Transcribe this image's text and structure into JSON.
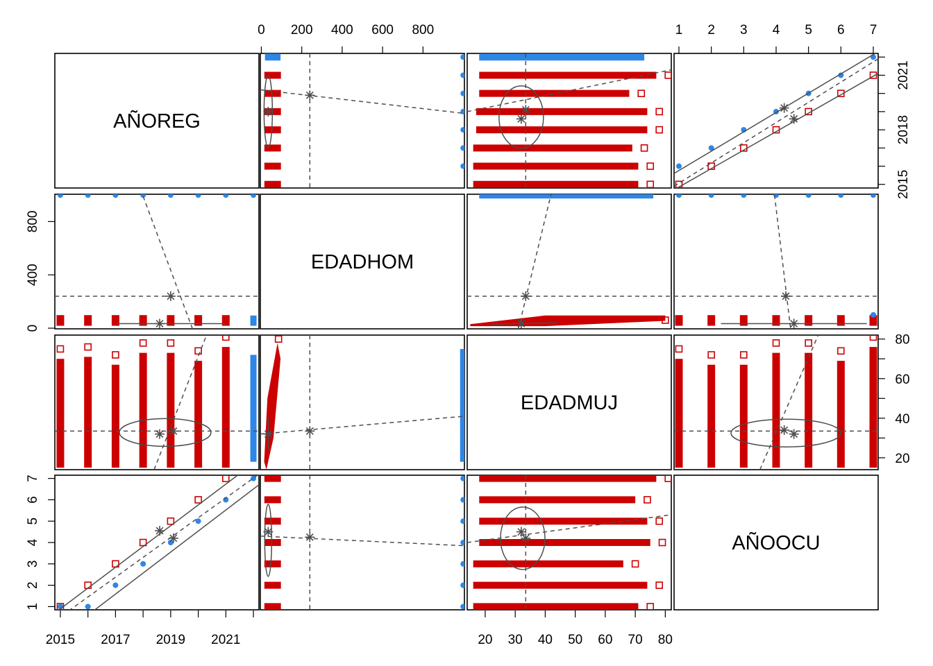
{
  "chart_data": {
    "type": "scatter",
    "kind": "scatterplot-matrix",
    "grid": false,
    "legend": "none",
    "variables": [
      "AÑOREG",
      "EDADHOM",
      "EDADMUJ",
      "AÑOOCU"
    ],
    "groups": [
      {
        "marker": "filled-circle",
        "color": "#2E86E6"
      },
      {
        "marker": "open-square",
        "color": "#CC0000"
      }
    ],
    "overlay_color": "#4D4D4D",
    "axes": {
      "AÑOREG": {
        "range": [
          2014.8,
          2022.2
        ],
        "ticks_top_or_bottom": [
          "2015",
          "2017",
          "2019",
          "2021"
        ],
        "ticks_side": [
          "2015",
          "2018",
          "2021"
        ]
      },
      "EDADHOM": {
        "range": [
          -5,
          1005
        ],
        "ticks_top_or_bottom": [
          "0",
          "200",
          "400",
          "600",
          "800"
        ],
        "ticks_side": [
          "0",
          "400",
          "800"
        ]
      },
      "EDADMUJ": {
        "range": [
          14,
          82
        ],
        "ticks_top_or_bottom": [
          "20",
          "30",
          "40",
          "50",
          "60",
          "70",
          "80"
        ],
        "ticks_side": [
          "20",
          "40",
          "60",
          "80"
        ]
      },
      "AÑOOCU": {
        "range": [
          0.85,
          7.15
        ],
        "ticks_top_or_bottom": [
          "1",
          "2",
          "3",
          "4",
          "5",
          "6",
          "7"
        ],
        "ticks_side": [
          "1",
          "2",
          "3",
          "4",
          "5",
          "6",
          "7"
        ]
      }
    },
    "summary": {
      "blue": {
        "AÑOREG": 2019.5,
        "EDADHOM": 240,
        "EDADMUJ": 33.5,
        "AÑOOCU": 4.2
      },
      "red": {
        "AÑOREG": 2018.3,
        "EDADHOM": 34,
        "EDADMUJ": 32,
        "AÑOOCU": 4.5
      },
      "overall": {
        "AÑOREG": 2019.0,
        "EDADHOM": 240,
        "EDADMUJ": 33.5,
        "AÑOOCU": 4.3
      }
    },
    "series_notes": {
      "blue_EDADHOM_code": 999,
      "AÑOOCU_vs_AÑOREG": "blue: year-of-occurrence code = AÑOREG - 2015 (+1 for red)"
    }
  }
}
